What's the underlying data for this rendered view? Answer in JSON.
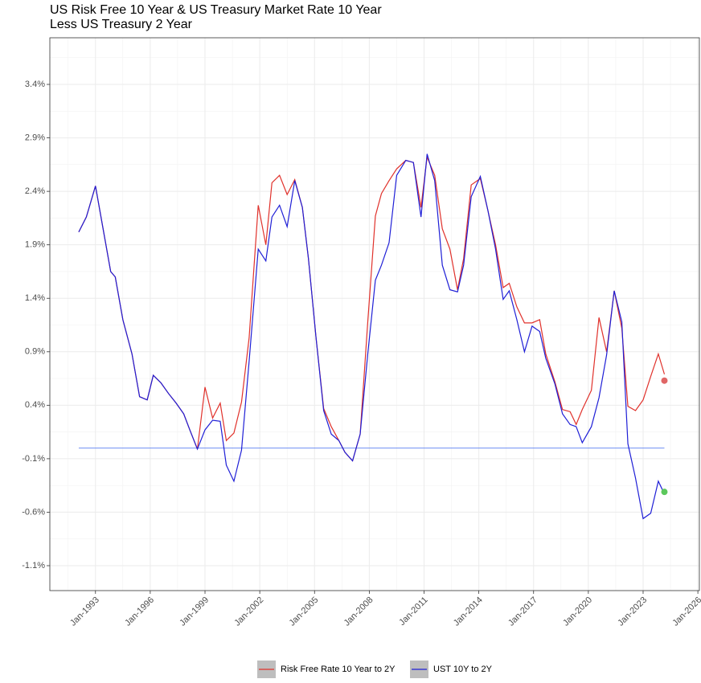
{
  "chart_data": {
    "type": "line",
    "title": [
      "US Risk Free 10 Year & US Treasury Market Rate 10 Year",
      "Less US Treasury 2 Year"
    ],
    "x": [
      "1992-02",
      "1992-07",
      "1993-01",
      "1993-06",
      "1993-11",
      "1994-02",
      "1994-07",
      "1995-01",
      "1995-06",
      "1995-11",
      "1996-03",
      "1996-08",
      "1997-01",
      "1997-06",
      "1997-11",
      "1998-03",
      "1998-08",
      "1999-01",
      "1999-06",
      "1999-11",
      "2000-03",
      "2000-08",
      "2001-01",
      "2001-06",
      "2001-12",
      "2002-05",
      "2002-09",
      "2003-02",
      "2003-07",
      "2003-12",
      "2004-05",
      "2004-09",
      "2005-02",
      "2005-07",
      "2005-12",
      "2006-05",
      "2006-09",
      "2007-02",
      "2007-07",
      "2007-12",
      "2008-05",
      "2008-09",
      "2009-02",
      "2009-07",
      "2010-01",
      "2010-06",
      "2010-11",
      "2011-03",
      "2011-08",
      "2012-01",
      "2012-06",
      "2012-11",
      "2013-03",
      "2013-08",
      "2014-02",
      "2014-07",
      "2014-12",
      "2015-05",
      "2015-09",
      "2016-02",
      "2016-07",
      "2016-12",
      "2017-05",
      "2017-09",
      "2018-03",
      "2018-08",
      "2019-01",
      "2019-05",
      "2019-09",
      "2020-03",
      "2020-08",
      "2021-01",
      "2021-06",
      "2021-11",
      "2022-03",
      "2022-08",
      "2023-01",
      "2023-06",
      "2023-11",
      "2024-03"
    ],
    "series": [
      {
        "name": "Risk Free Rate 10 Year to 2Y",
        "color": "#e0312b",
        "values": [
          2.02,
          2.16,
          2.45,
          2.05,
          1.65,
          1.6,
          1.2,
          0.88,
          0.48,
          0.45,
          0.68,
          0.61,
          0.51,
          0.42,
          0.32,
          0.17,
          -0.01,
          0.57,
          0.28,
          0.42,
          0.07,
          0.14,
          0.43,
          1.03,
          2.27,
          1.9,
          2.48,
          2.55,
          2.37,
          2.51,
          2.25,
          1.77,
          1.03,
          0.37,
          0.2,
          0.07,
          -0.04,
          -0.12,
          0.13,
          1.18,
          2.17,
          2.38,
          2.5,
          2.61,
          2.69,
          2.67,
          2.25,
          2.72,
          2.55,
          2.05,
          1.86,
          1.48,
          1.77,
          2.46,
          2.52,
          2.22,
          1.9,
          1.5,
          1.54,
          1.32,
          1.17,
          1.17,
          1.2,
          0.88,
          0.62,
          0.36,
          0.34,
          0.22,
          0.36,
          0.54,
          1.22,
          0.9,
          1.47,
          1.12,
          0.39,
          0.35,
          0.45,
          0.67,
          0.88,
          0.69
        ]
      },
      {
        "name": "UST 10Y to 2Y",
        "color": "#1f1fd6",
        "values": [
          2.02,
          2.16,
          2.45,
          2.05,
          1.65,
          1.6,
          1.2,
          0.88,
          0.48,
          0.45,
          0.68,
          0.61,
          0.51,
          0.42,
          0.32,
          0.17,
          -0.01,
          0.17,
          0.26,
          0.25,
          -0.16,
          -0.31,
          -0.02,
          0.81,
          1.86,
          1.75,
          2.16,
          2.27,
          2.07,
          2.5,
          2.25,
          1.77,
          1.03,
          0.35,
          0.13,
          0.07,
          -0.04,
          -0.12,
          0.13,
          0.88,
          1.57,
          1.71,
          1.92,
          2.55,
          2.69,
          2.67,
          2.16,
          2.75,
          2.5,
          1.71,
          1.48,
          1.46,
          1.71,
          2.35,
          2.54,
          2.22,
          1.86,
          1.39,
          1.47,
          1.2,
          0.9,
          1.14,
          1.09,
          0.84,
          0.6,
          0.32,
          0.22,
          0.2,
          0.05,
          0.2,
          0.47,
          0.87,
          1.47,
          1.18,
          0.04,
          -0.28,
          -0.66,
          -0.61,
          -0.31,
          -0.43
        ]
      }
    ],
    "hline": {
      "value": 0,
      "x": [
        "1992-02",
        "2024-03"
      ],
      "color": "#6e8ef2"
    },
    "points": [
      {
        "x": "2024-03",
        "value": 0.63,
        "color": "#e06666"
      },
      {
        "x": "2024-03",
        "value": -0.41,
        "color": "#5cc85c"
      }
    ],
    "xlim": [
      "1990-07",
      "2026-02"
    ],
    "xticks": [
      {
        "value": "1993-01",
        "label": "Jan-1993"
      },
      {
        "value": "1996-01",
        "label": "Jan-1996"
      },
      {
        "value": "1999-01",
        "label": "Jan-1999"
      },
      {
        "value": "2002-01",
        "label": "Jan-2002"
      },
      {
        "value": "2005-01",
        "label": "Jan-2005"
      },
      {
        "value": "2008-01",
        "label": "Jan-2008"
      },
      {
        "value": "2011-01",
        "label": "Jan-2011"
      },
      {
        "value": "2014-01",
        "label": "Jan-2014"
      },
      {
        "value": "2017-01",
        "label": "Jan-2017"
      },
      {
        "value": "2020-01",
        "label": "Jan-2020"
      },
      {
        "value": "2023-01",
        "label": "Jan-2023"
      },
      {
        "value": "2026-01",
        "label": "Jan-2026"
      }
    ],
    "ylim": [
      -1.333,
      3.836
    ],
    "yticks": [
      {
        "value": -1.1,
        "label": "-1.1%"
      },
      {
        "value": -0.6,
        "label": "-0.6%"
      },
      {
        "value": -0.1,
        "label": "-0.1%"
      },
      {
        "value": 0.4,
        "label": "0.4%"
      },
      {
        "value": 0.9,
        "label": "0.9%"
      },
      {
        "value": 1.4,
        "label": "1.4%"
      },
      {
        "value": 1.9,
        "label": "1.9%"
      },
      {
        "value": 2.4,
        "label": "2.4%"
      },
      {
        "value": 2.9,
        "label": "2.9%"
      },
      {
        "value": 3.4,
        "label": "3.4%"
      }
    ],
    "grid": true,
    "legend": "bottom"
  }
}
